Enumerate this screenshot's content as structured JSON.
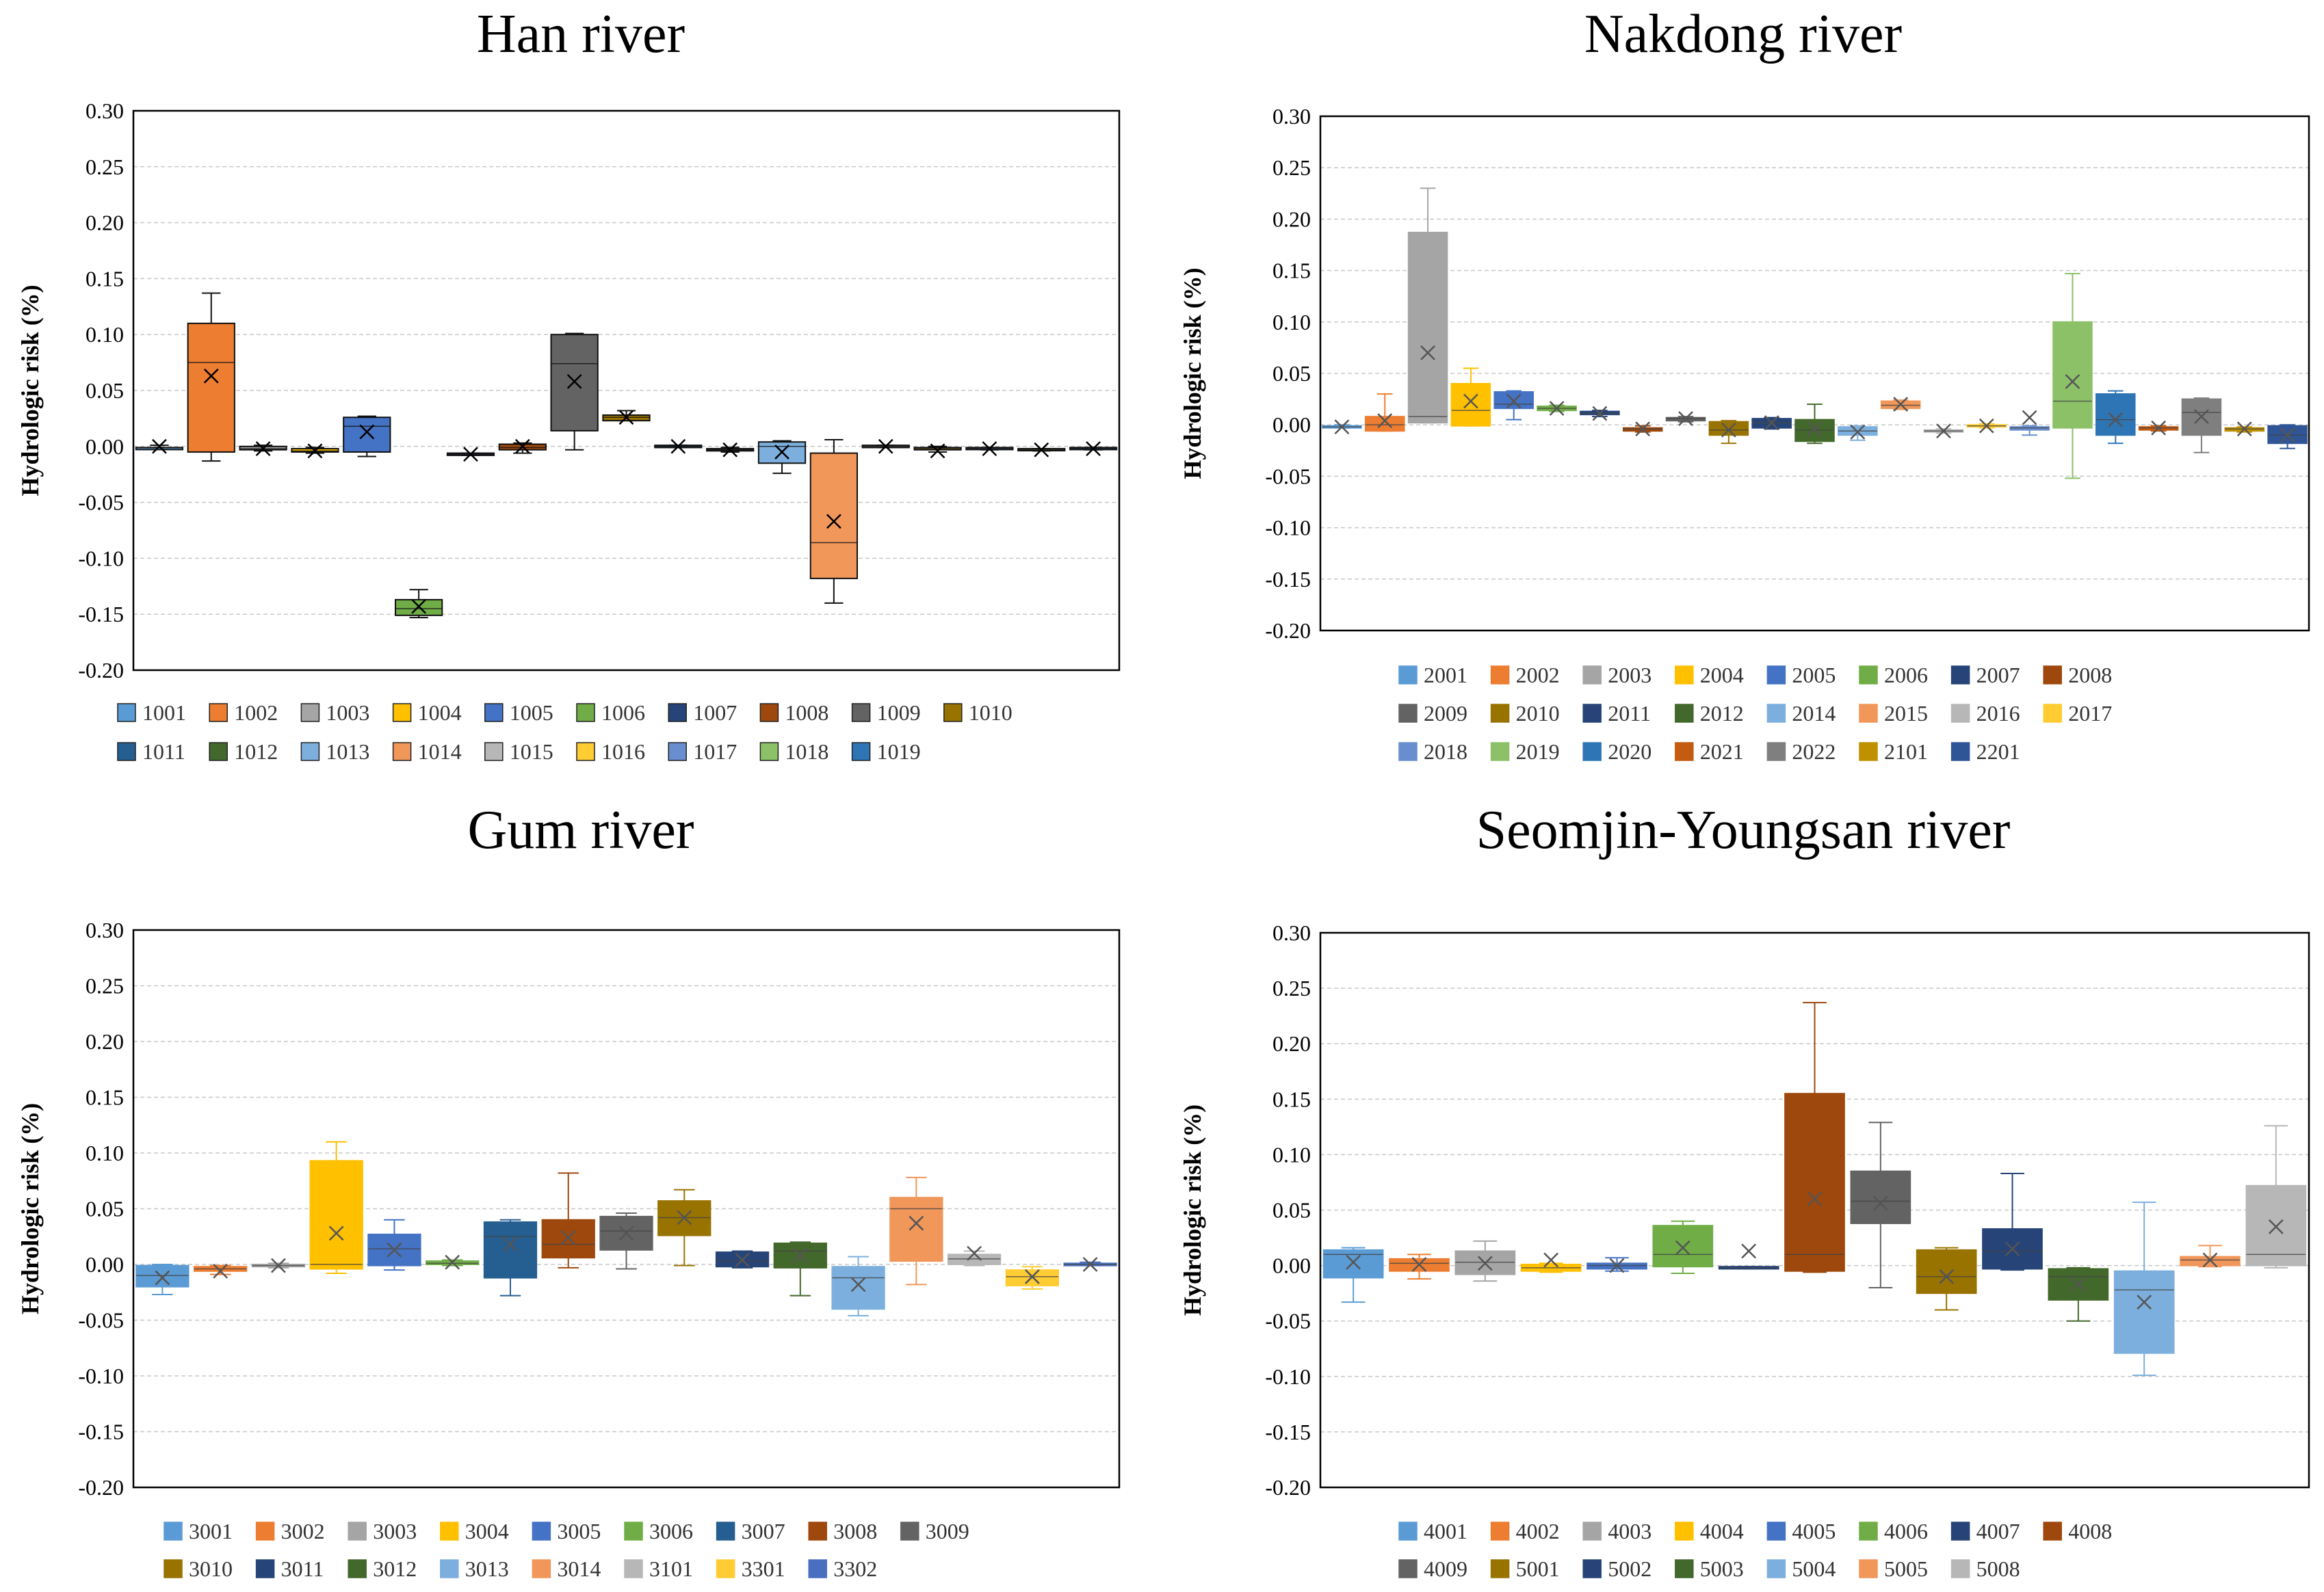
{
  "chart_data": [
    {
      "type": "box",
      "title": "Han river",
      "ylabel": "Hydrologic risk (%)",
      "ylim": [
        -0.2,
        0.3
      ],
      "yticks": [
        "0.30",
        "0.25",
        "0.20",
        "0.15",
        "0.10",
        "0.05",
        "0.00",
        "-0.05",
        "-0.10",
        "-0.15",
        "-0.20"
      ],
      "grid": true,
      "legend": "bottom",
      "legend_rows": [
        [
          "1001",
          "1002",
          "1003",
          "1004",
          "1005",
          "1006",
          "1007",
          "1008",
          "1009",
          "1010"
        ],
        [
          "1011",
          "1012",
          "1013",
          "1014",
          "1015",
          "1016",
          "1017",
          "1018",
          "1019"
        ]
      ],
      "series": [
        {
          "name": "1001",
          "color": "#5b9bd5",
          "min": -0.002,
          "q1": -0.002,
          "median": -0.001,
          "q3": -0.001,
          "max": 0.001,
          "mean": 0.0
        },
        {
          "name": "1002",
          "color": "#ed7d31",
          "min": -0.013,
          "q1": -0.005,
          "median": 0.075,
          "q3": 0.11,
          "max": 0.137,
          "mean": 0.063
        },
        {
          "name": "1003",
          "color": "#a5a5a5",
          "min": -0.004,
          "q1": -0.003,
          "median": -0.002,
          "q3": 0.0,
          "max": 0.001,
          "mean": -0.002
        },
        {
          "name": "1004",
          "color": "#ffc000",
          "min": -0.006,
          "q1": -0.005,
          "median": -0.004,
          "q3": -0.002,
          "max": -0.001,
          "mean": -0.004
        },
        {
          "name": "1005",
          "color": "#4472c4",
          "min": -0.009,
          "q1": -0.005,
          "median": 0.018,
          "q3": 0.026,
          "max": 0.027,
          "mean": 0.013
        },
        {
          "name": "1006",
          "color": "#70ad47",
          "min": -0.153,
          "q1": -0.151,
          "median": -0.145,
          "q3": -0.137,
          "max": -0.128,
          "mean": -0.143
        },
        {
          "name": "1007",
          "color": "#264478",
          "min": -0.008,
          "q1": -0.008,
          "median": -0.007,
          "q3": -0.006,
          "max": -0.006,
          "mean": -0.007
        },
        {
          "name": "1008",
          "color": "#9e480e",
          "min": -0.006,
          "q1": -0.003,
          "median": -0.001,
          "q3": 0.002,
          "max": 0.003,
          "mean": 0.0
        },
        {
          "name": "1009",
          "color": "#636363",
          "min": -0.003,
          "q1": 0.014,
          "median": 0.074,
          "q3": 0.1,
          "max": 0.101,
          "mean": 0.058
        },
        {
          "name": "1010",
          "color": "#997300",
          "min": 0.023,
          "q1": 0.023,
          "median": 0.026,
          "q3": 0.028,
          "max": 0.032,
          "mean": 0.026
        },
        {
          "name": "1011",
          "color": "#255e91",
          "min": -0.001,
          "q1": -0.001,
          "median": 0.0,
          "q3": 0.001,
          "max": 0.001,
          "mean": 0.0
        },
        {
          "name": "1012",
          "color": "#43682b",
          "min": -0.005,
          "q1": -0.004,
          "median": -0.003,
          "q3": -0.002,
          "max": -0.001,
          "mean": -0.003
        },
        {
          "name": "1013",
          "color": "#7cafdd",
          "min": -0.024,
          "q1": -0.015,
          "median": 0.0,
          "q3": 0.004,
          "max": 0.005,
          "mean": -0.005
        },
        {
          "name": "1014",
          "color": "#f1975a",
          "min": -0.14,
          "q1": -0.118,
          "median": -0.086,
          "q3": -0.006,
          "max": 0.006,
          "mean": -0.067
        },
        {
          "name": "1015",
          "color": "#b7b7b7",
          "min": -0.001,
          "q1": -0.001,
          "median": 0.0,
          "q3": 0.001,
          "max": 0.001,
          "mean": 0.0
        },
        {
          "name": "1016",
          "color": "#ffcd33",
          "min": -0.005,
          "q1": -0.003,
          "median": -0.002,
          "q3": -0.001,
          "max": 0.0,
          "mean": -0.004
        },
        {
          "name": "1017",
          "color": "#698ed0",
          "min": -0.003,
          "q1": -0.002,
          "median": -0.002,
          "q3": -0.001,
          "max": -0.001,
          "mean": -0.002
        },
        {
          "name": "1018",
          "color": "#8cc168",
          "min": -0.004,
          "q1": -0.003,
          "median": -0.003,
          "q3": -0.002,
          "max": -0.002,
          "mean": -0.003
        },
        {
          "name": "1019",
          "color": "#2e75b6",
          "min": -0.003,
          "q1": -0.002,
          "median": -0.002,
          "q3": -0.001,
          "max": -0.001,
          "mean": -0.002
        }
      ]
    },
    {
      "type": "box",
      "title": "Nakdong river",
      "ylabel": "Hydrologic risk (%)",
      "ylim": [
        -0.2,
        0.3
      ],
      "yticks": [
        "0.30",
        "0.25",
        "0.20",
        "0.15",
        "0.10",
        "0.05",
        "0.00",
        "-0.05",
        "-0.10",
        "-0.15",
        "-0.20"
      ],
      "grid": true,
      "legend": "bottom",
      "legend_rows": [
        [
          "2001",
          "2002",
          "2003",
          "2004",
          "2005",
          "2006",
          "2007",
          "2008"
        ],
        [
          "2009",
          "2010",
          "2011",
          "2012",
          "2014",
          "2015",
          "2016",
          "2017"
        ],
        [
          "2018",
          "2019",
          "2020",
          "2021",
          "2022",
          "2101",
          "2201"
        ]
      ],
      "series": [
        {
          "name": "2001",
          "color": "#5b9bd5",
          "min": -0.003,
          "q1": -0.003,
          "median": -0.002,
          "q3": -0.001,
          "max": 0.0,
          "mean": -0.002
        },
        {
          "name": "2002",
          "color": "#ed7d31",
          "min": -0.006,
          "q1": -0.006,
          "median": 0.0,
          "q3": 0.008,
          "max": 0.03,
          "mean": 0.004
        },
        {
          "name": "2003",
          "color": "#a5a5a5",
          "min": 0.002,
          "q1": 0.002,
          "median": 0.008,
          "q3": 0.187,
          "max": 0.23,
          "mean": 0.07
        },
        {
          "name": "2004",
          "color": "#ffc000",
          "min": -0.001,
          "q1": -0.001,
          "median": 0.014,
          "q3": 0.04,
          "max": 0.055,
          "mean": 0.023
        },
        {
          "name": "2005",
          "color": "#4472c4",
          "min": 0.005,
          "q1": 0.016,
          "median": 0.02,
          "q3": 0.032,
          "max": 0.033,
          "mean": 0.023
        },
        {
          "name": "2006",
          "color": "#70ad47",
          "min": 0.013,
          "q1": 0.014,
          "median": 0.016,
          "q3": 0.018,
          "max": 0.019,
          "mean": 0.016
        },
        {
          "name": "2007",
          "color": "#264478",
          "min": 0.008,
          "q1": 0.01,
          "median": 0.011,
          "q3": 0.013,
          "max": 0.014,
          "mean": 0.011
        },
        {
          "name": "2008",
          "color": "#9e480e",
          "min": -0.007,
          "q1": -0.006,
          "median": -0.004,
          "q3": -0.003,
          "max": -0.001,
          "mean": -0.004
        },
        {
          "name": "2009",
          "color": "#636363",
          "min": 0.003,
          "q1": 0.004,
          "median": 0.006,
          "q3": 0.007,
          "max": 0.008,
          "mean": 0.006
        },
        {
          "name": "2010",
          "color": "#997300",
          "min": -0.018,
          "q1": -0.01,
          "median": -0.005,
          "q3": 0.003,
          "max": 0.004,
          "mean": -0.005
        },
        {
          "name": "2011",
          "color": "#264478",
          "min": -0.004,
          "q1": -0.003,
          "median": 0.002,
          "q3": 0.006,
          "max": 0.007,
          "mean": 0.002
        },
        {
          "name": "2012",
          "color": "#43682b",
          "min": -0.018,
          "q1": -0.016,
          "median": -0.005,
          "q3": 0.005,
          "max": 0.02,
          "mean": -0.004
        },
        {
          "name": "2014",
          "color": "#7cafdd",
          "min": -0.015,
          "q1": -0.01,
          "median": -0.006,
          "q3": -0.002,
          "max": -0.001,
          "mean": -0.007
        },
        {
          "name": "2015",
          "color": "#f1975a",
          "min": 0.015,
          "q1": 0.016,
          "median": 0.019,
          "q3": 0.023,
          "max": 0.024,
          "mean": 0.02
        },
        {
          "name": "2016",
          "color": "#b7b7b7",
          "min": -0.008,
          "q1": -0.007,
          "median": -0.006,
          "q3": -0.005,
          "max": -0.004,
          "mean": -0.006
        },
        {
          "name": "2017",
          "color": "#ffcd33",
          "min": -0.003,
          "q1": -0.002,
          "median": -0.001,
          "q3": 0.0,
          "max": 0.001,
          "mean": -0.001
        },
        {
          "name": "2018",
          "color": "#698ed0",
          "min": -0.01,
          "q1": -0.005,
          "median": -0.003,
          "q3": -0.002,
          "max": -0.001,
          "mean": 0.007
        },
        {
          "name": "2019",
          "color": "#8cc168",
          "min": -0.052,
          "q1": -0.003,
          "median": 0.023,
          "q3": 0.1,
          "max": 0.147,
          "mean": 0.042
        },
        {
          "name": "2020",
          "color": "#2e75b6",
          "min": -0.018,
          "q1": -0.01,
          "median": 0.005,
          "q3": 0.03,
          "max": 0.033,
          "mean": 0.005
        },
        {
          "name": "2021",
          "color": "#c55a11",
          "min": -0.006,
          "q1": -0.005,
          "median": -0.003,
          "q3": -0.002,
          "max": -0.001,
          "mean": -0.003
        },
        {
          "name": "2022",
          "color": "#7f7f7f",
          "min": -0.027,
          "q1": -0.01,
          "median": 0.012,
          "q3": 0.025,
          "max": 0.026,
          "mean": 0.008
        },
        {
          "name": "2101",
          "color": "#bf9000",
          "min": -0.007,
          "q1": -0.006,
          "median": -0.004,
          "q3": -0.003,
          "max": -0.002,
          "mean": -0.004
        },
        {
          "name": "2201",
          "color": "#2f5597",
          "min": -0.023,
          "q1": -0.018,
          "median": -0.01,
          "q3": -0.001,
          "max": 0.0,
          "mean": -0.01
        }
      ]
    },
    {
      "type": "box",
      "title": "Gum river",
      "ylabel": "Hydrologic risk (%)",
      "ylim": [
        -0.2,
        0.3
      ],
      "yticks": [
        "0.30",
        "0.25",
        "0.20",
        "0.15",
        "0.10",
        "0.05",
        "0.00",
        "-0.05",
        "-0.10",
        "-0.15",
        "-0.20"
      ],
      "grid": true,
      "legend": "bottom",
      "legend_rows": [
        [
          "3001",
          "3002",
          "3003",
          "3004",
          "3005",
          "3006",
          "3007",
          "3008",
          "3009"
        ],
        [
          "3010",
          "3011",
          "3012",
          "3013",
          "3014",
          "3101",
          "3301",
          "3302"
        ]
      ],
      "series": [
        {
          "name": "3001",
          "color": "#5b9bd5",
          "min": -0.027,
          "q1": -0.02,
          "median": -0.01,
          "q3": -0.001,
          "max": 0.0,
          "mean": -0.012
        },
        {
          "name": "3002",
          "color": "#ed7d31",
          "min": -0.009,
          "q1": -0.006,
          "median": -0.004,
          "q3": -0.002,
          "max": -0.001,
          "mean": -0.006
        },
        {
          "name": "3003",
          "color": "#a5a5a5",
          "min": -0.003,
          "q1": -0.002,
          "median": -0.001,
          "q3": 0.0,
          "max": 0.001,
          "mean": -0.001
        },
        {
          "name": "3004",
          "color": "#ffc000",
          "min": -0.008,
          "q1": -0.004,
          "median": 0.0,
          "q3": 0.093,
          "max": 0.11,
          "mean": 0.028
        },
        {
          "name": "3005",
          "color": "#4472c4",
          "min": -0.005,
          "q1": -0.001,
          "median": 0.014,
          "q3": 0.027,
          "max": 0.04,
          "mean": 0.013
        },
        {
          "name": "3006",
          "color": "#70ad47",
          "min": -0.001,
          "q1": 0.0,
          "median": 0.001,
          "q3": 0.003,
          "max": 0.004,
          "mean": 0.002
        },
        {
          "name": "3007",
          "color": "#255e91",
          "min": -0.028,
          "q1": -0.012,
          "median": 0.025,
          "q3": 0.038,
          "max": 0.04,
          "mean": 0.018
        },
        {
          "name": "3008",
          "color": "#9e480e",
          "min": -0.003,
          "q1": 0.006,
          "median": 0.018,
          "q3": 0.04,
          "max": 0.082,
          "mean": 0.024
        },
        {
          "name": "3009",
          "color": "#636363",
          "min": -0.004,
          "q1": 0.013,
          "median": 0.03,
          "q3": 0.043,
          "max": 0.046,
          "mean": 0.028
        },
        {
          "name": "3010",
          "color": "#997300",
          "min": -0.001,
          "q1": 0.026,
          "median": 0.042,
          "q3": 0.057,
          "max": 0.067,
          "mean": 0.042
        },
        {
          "name": "3011",
          "color": "#264478",
          "min": -0.003,
          "q1": -0.002,
          "median": 0.003,
          "q3": 0.011,
          "max": 0.012,
          "mean": 0.004
        },
        {
          "name": "3012",
          "color": "#43682b",
          "min": -0.028,
          "q1": -0.003,
          "median": 0.012,
          "q3": 0.019,
          "max": 0.02,
          "mean": 0.008
        },
        {
          "name": "3013",
          "color": "#7cafdd",
          "min": -0.046,
          "q1": -0.04,
          "median": -0.012,
          "q3": -0.002,
          "max": 0.007,
          "mean": -0.018
        },
        {
          "name": "3014",
          "color": "#f1975a",
          "min": -0.018,
          "q1": 0.003,
          "median": 0.05,
          "q3": 0.06,
          "max": 0.078,
          "mean": 0.037
        },
        {
          "name": "3101",
          "color": "#b7b7b7",
          "min": -0.001,
          "q1": 0.0,
          "median": 0.005,
          "q3": 0.009,
          "max": 0.012,
          "mean": 0.01
        },
        {
          "name": "3301",
          "color": "#ffcd33",
          "min": -0.022,
          "q1": -0.019,
          "median": -0.011,
          "q3": -0.005,
          "max": -0.002,
          "mean": -0.011
        },
        {
          "name": "3302",
          "color": "#4a6fbf",
          "min": -0.001,
          "q1": -0.001,
          "median": 0.0,
          "q3": 0.001,
          "max": 0.002,
          "mean": 0.0
        }
      ]
    },
    {
      "type": "box",
      "title": "Seomjin-Youngsan river",
      "ylabel": "Hydrologic risk (%)",
      "ylim": [
        -0.2,
        0.3
      ],
      "yticks": [
        "0.30",
        "0.25",
        "0.20",
        "0.15",
        "0.10",
        "0.05",
        "0.00",
        "-0.05",
        "-0.10",
        "-0.15",
        "-0.20"
      ],
      "grid": true,
      "legend": "bottom",
      "legend_rows": [
        [
          "4001",
          "4002",
          "4003",
          "4004",
          "4005",
          "4006",
          "4007",
          "4008"
        ],
        [
          "4009",
          "5001",
          "5002",
          "5003",
          "5004",
          "5005",
          "5008"
        ]
      ],
      "series": [
        {
          "name": "4001",
          "color": "#5b9bd5",
          "min": -0.033,
          "q1": -0.011,
          "median": 0.01,
          "q3": 0.014,
          "max": 0.016,
          "mean": 0.003
        },
        {
          "name": "4002",
          "color": "#ed7d31",
          "min": -0.012,
          "q1": -0.005,
          "median": 0.002,
          "q3": 0.006,
          "max": 0.01,
          "mean": 0.001
        },
        {
          "name": "4003",
          "color": "#a5a5a5",
          "min": -0.014,
          "q1": -0.008,
          "median": 0.003,
          "q3": 0.013,
          "max": 0.022,
          "mean": 0.002
        },
        {
          "name": "4004",
          "color": "#ffc000",
          "min": -0.006,
          "q1": -0.005,
          "median": -0.002,
          "q3": 0.001,
          "max": 0.002,
          "mean": 0.005
        },
        {
          "name": "4005",
          "color": "#4472c4",
          "min": -0.005,
          "q1": -0.003,
          "median": 0.0,
          "q3": 0.002,
          "max": 0.007,
          "mean": 0.0
        },
        {
          "name": "4006",
          "color": "#70ad47",
          "min": -0.007,
          "q1": -0.001,
          "median": 0.01,
          "q3": 0.036,
          "max": 0.04,
          "mean": 0.016
        },
        {
          "name": "4007",
          "color": "#264478",
          "min": -0.003,
          "q1": -0.003,
          "median": -0.002,
          "q3": -0.001,
          "max": -0.001,
          "mean": 0.013
        },
        {
          "name": "4008",
          "color": "#9e480e",
          "min": -0.006,
          "q1": -0.005,
          "median": 0.01,
          "q3": 0.155,
          "max": 0.237,
          "mean": 0.06
        },
        {
          "name": "4009",
          "color": "#636363",
          "min": -0.02,
          "q1": 0.038,
          "median": 0.058,
          "q3": 0.085,
          "max": 0.129,
          "mean": 0.056
        },
        {
          "name": "5001",
          "color": "#997300",
          "min": -0.04,
          "q1": -0.025,
          "median": -0.01,
          "q3": 0.014,
          "max": 0.016,
          "mean": -0.01
        },
        {
          "name": "5002",
          "color": "#264478",
          "min": -0.004,
          "q1": -0.003,
          "median": 0.013,
          "q3": 0.033,
          "max": 0.083,
          "mean": 0.015
        },
        {
          "name": "5003",
          "color": "#43682b",
          "min": -0.05,
          "q1": -0.031,
          "median": -0.01,
          "q3": -0.003,
          "max": -0.002,
          "mean": -0.017
        },
        {
          "name": "5004",
          "color": "#7cafdd",
          "min": -0.099,
          "q1": -0.079,
          "median": -0.022,
          "q3": -0.005,
          "max": 0.057,
          "mean": -0.033
        },
        {
          "name": "5005",
          "color": "#f1975a",
          "min": -0.001,
          "q1": 0.0,
          "median": 0.005,
          "q3": 0.008,
          "max": 0.018,
          "mean": 0.005
        },
        {
          "name": "5008",
          "color": "#b7b7b7",
          "min": -0.002,
          "q1": 0.0,
          "median": 0.01,
          "q3": 0.072,
          "max": 0.126,
          "mean": 0.035
        }
      ]
    }
  ]
}
